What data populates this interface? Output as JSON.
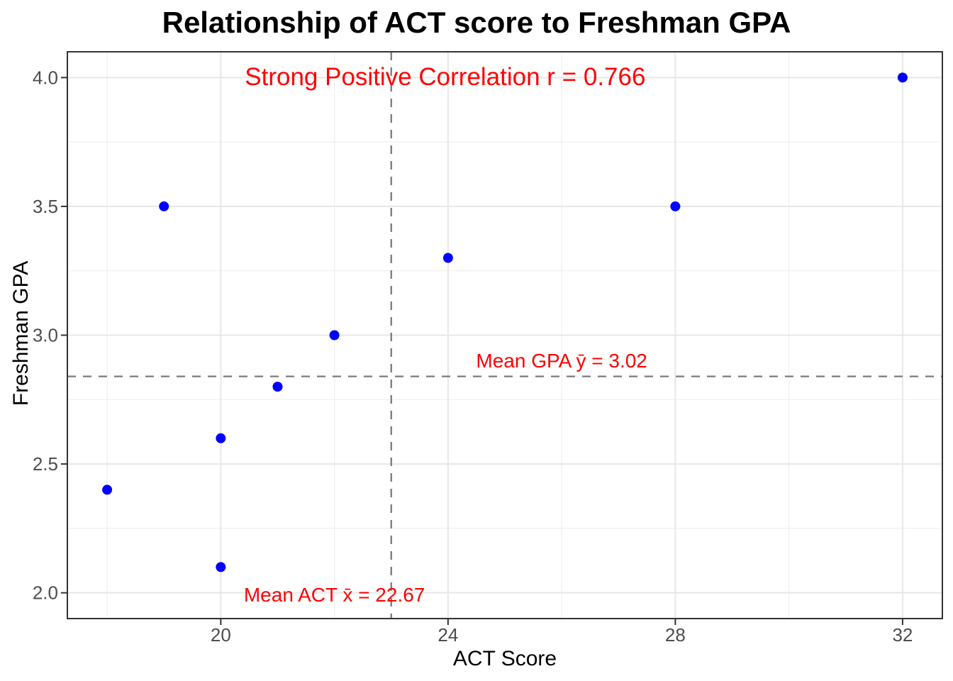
{
  "chart_data": {
    "type": "scatter",
    "title": "Relationship of ACT score to Freshman GPA",
    "xlabel": "ACT Score",
    "ylabel": "Freshman GPA",
    "x": [
      18,
      19,
      20,
      20,
      21,
      22,
      24,
      28,
      32
    ],
    "y": [
      2.4,
      3.5,
      2.1,
      2.6,
      2.8,
      3.0,
      3.3,
      3.5,
      4.0
    ],
    "xlim": [
      17.3,
      32.7
    ],
    "ylim": [
      1.9,
      4.1
    ],
    "x_ticks": {
      "values": [
        20,
        24,
        28,
        32
      ],
      "labels": [
        "20",
        "24",
        "28",
        "32"
      ]
    },
    "y_ticks": {
      "values": [
        2.0,
        2.5,
        3.0,
        3.5,
        4.0
      ],
      "labels": [
        "2.0",
        "2.5",
        "3.0",
        "3.5",
        "4.0"
      ]
    },
    "x_minor_gridlines": [
      18,
      22,
      26,
      30
    ],
    "y_minor_gridlines": [
      2.25,
      2.75,
      3.25,
      3.75
    ],
    "grid": "on",
    "legend": "none",
    "point_style": {
      "color": "#0000ff",
      "radius_px": 7
    },
    "reference_lines": {
      "vline": {
        "x": 23.0,
        "style": "dashed"
      },
      "hline": {
        "y": 2.84,
        "style": "dashed"
      }
    },
    "annotations": {
      "correlation": {
        "text": "Strong Positive Correlation r = 0.766",
        "x": 23.95,
        "y": 4.0,
        "color": "#ff0000"
      },
      "mean_gpa": {
        "text": "Mean GPA ȳ = 3.02",
        "x": 26.0,
        "y": 2.9,
        "color": "#ff0000"
      },
      "mean_act": {
        "text": "Mean ACT x̄ = 22.67",
        "x": 22.0,
        "y": 1.99,
        "color": "#ff0000"
      }
    },
    "colors": {
      "background": "#ffffff",
      "point": "#0000ff",
      "annotation_red": "#ff0000",
      "dashed_line": "#7a7a7a",
      "grid_major": "#e7e7e7",
      "grid_minor": "#f0f0f0",
      "panel_border": "#333333",
      "tick_mark": "#333333",
      "tick_label": "#4d4d4d",
      "axis_title": "#000000",
      "title": "#000000"
    }
  }
}
